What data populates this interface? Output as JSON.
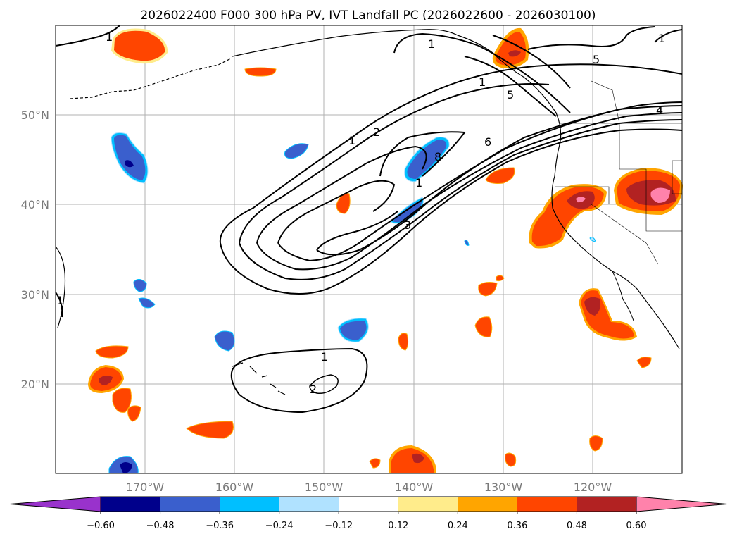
{
  "title": "2026022400 F000 300 hPa PV, IVT Landfall PC (2026022600 - 2026030100)",
  "map": {
    "lat_labels": [
      "50°N",
      "40°N",
      "30°N",
      "20°N"
    ],
    "lon_labels": [
      "170°W",
      "160°W",
      "150°W",
      "140°W",
      "130°W",
      "120°W"
    ],
    "extent": {
      "lon": [
        -180,
        -110
      ],
      "lat": [
        10,
        60
      ]
    },
    "gridlines": true
  },
  "contour_labels": [
    "1",
    "1",
    "2",
    "1",
    "8",
    "1",
    "3",
    "6",
    "5",
    "5",
    "4",
    "1",
    "1",
    "2",
    "1",
    "1"
  ],
  "colorbar": {
    "ticks": [
      "−0.60",
      "−0.48",
      "−0.36",
      "−0.24",
      "−0.12",
      "0.12",
      "0.24",
      "0.36",
      "0.48",
      "0.60"
    ],
    "colors": [
      "#9932cc",
      "#00008b",
      "#3a5fcd",
      "#00bfff",
      "#b0e2ff",
      "#ffffff",
      "#ffec8b",
      "#ffa500",
      "#ff4500",
      "#b22222",
      "#ff82ab"
    ],
    "levels": [
      -0.72,
      -0.6,
      -0.48,
      -0.36,
      -0.24,
      -0.12,
      0.12,
      0.24,
      0.36,
      0.48,
      0.6,
      0.72
    ]
  }
}
